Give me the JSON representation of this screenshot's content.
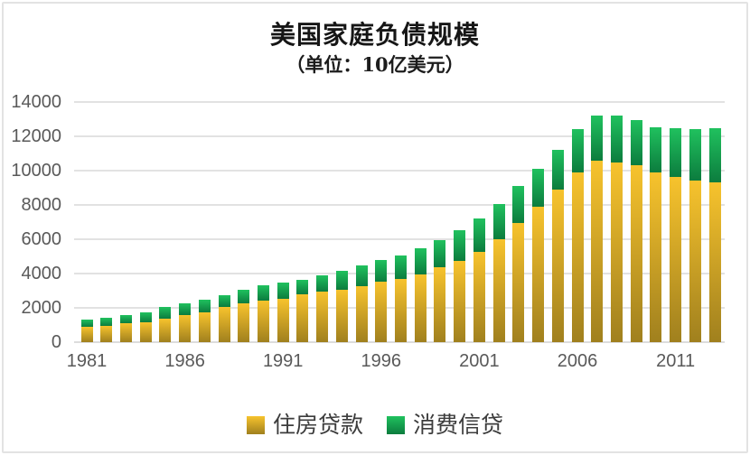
{
  "title": "美国家庭负债规模",
  "subtitle": "（单位：10亿美元）",
  "colors": {
    "housing_top": "#f7c32d",
    "housing_bottom": "#a0801e",
    "consumer_top": "#20c15e",
    "consumer_bottom": "#0c7c3e",
    "gridline": "#e2e2e2",
    "tick_text": "#595959"
  },
  "legend": {
    "items": [
      {
        "label": "住房贷款",
        "swatch": "housing-swatch"
      },
      {
        "label": "消费信贷",
        "swatch": "consumer-swatch"
      }
    ]
  },
  "chart_data": {
    "type": "bar",
    "stacked": true,
    "title": "美国家庭负债规模",
    "subtitle": "（单位：10亿美元）",
    "unit": "10亿美元",
    "categories": [
      1981,
      1982,
      1983,
      1984,
      1985,
      1986,
      1987,
      1988,
      1989,
      1990,
      1991,
      1992,
      1993,
      1994,
      1995,
      1996,
      1997,
      1998,
      1999,
      2000,
      2001,
      2002,
      2003,
      2004,
      2005,
      2006,
      2007,
      2008,
      2009,
      2010,
      2011,
      2012,
      2013
    ],
    "series": [
      {
        "name": "住房贷款",
        "color_top": "#f7c32d",
        "color_bottom": "#a0801e",
        "values": [
          910,
          960,
          1090,
          1175,
          1390,
          1580,
          1740,
          2070,
          2250,
          2440,
          2540,
          2790,
          2930,
          3050,
          3250,
          3510,
          3700,
          3930,
          4390,
          4740,
          5290,
          6000,
          6930,
          7890,
          8900,
          9890,
          10580,
          10470,
          10320,
          9890,
          9630,
          9420,
          9320
        ]
      },
      {
        "name": "消费信贷",
        "color_top": "#20c15e",
        "color_bottom": "#0c7c3e",
        "values": [
          410,
          440,
          470,
          565,
          660,
          685,
          750,
          670,
          810,
          860,
          960,
          860,
          950,
          1120,
          1230,
          1280,
          1350,
          1540,
          1560,
          1790,
          1920,
          2040,
          2160,
          2230,
          2320,
          2530,
          2650,
          2760,
          2630,
          2630,
          2840,
          3000,
          3160
        ]
      }
    ],
    "ylim": [
      0,
      14000
    ],
    "ytick_step": 2000,
    "ytick_labels": [
      "0",
      "2000",
      "4000",
      "6000",
      "8000",
      "10000",
      "12000",
      "14000"
    ],
    "xtick_labels": [
      "1981",
      "1986",
      "1991",
      "1996",
      "2001",
      "2006",
      "2011"
    ],
    "xtick_every": 5,
    "grid": true,
    "legend_position": "bottom"
  }
}
